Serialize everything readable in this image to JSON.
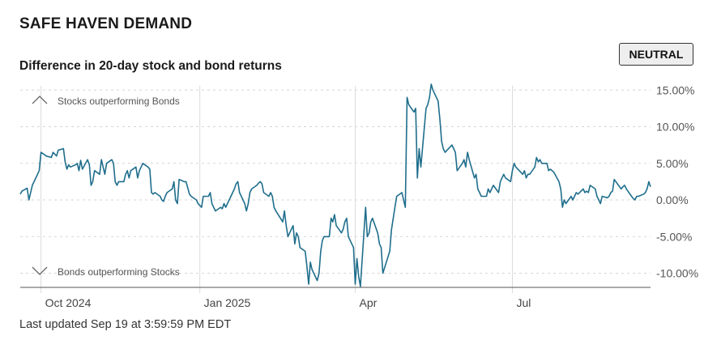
{
  "header": {
    "title": "SAFE HAVEN DEMAND",
    "subtitle": "Difference in 20-day stock and bond returns",
    "status_badge": "NEUTRAL"
  },
  "footer": {
    "last_updated": "Last updated Sep 19 at 3:59:59 PM EDT"
  },
  "chart_data": {
    "type": "line",
    "title": "Difference in 20-day stock and bond returns",
    "xlabel": "",
    "ylabel": "",
    "x_ticks": [
      "Oct 2024",
      "Jan 2025",
      "Apr",
      "Jul"
    ],
    "y_ticks": [
      "15.00%",
      "10.00%",
      "5.00%",
      "0.00%",
      "-5.00%",
      "-10.00%"
    ],
    "ylim": [
      -12,
      16
    ],
    "xlim": [
      "2024-09-19",
      "2025-09-19"
    ],
    "grid": true,
    "annotations": {
      "top": "Stocks outperforming Bonds",
      "bottom": "Bonds outperforming Stocks"
    },
    "line_color": "#1f6e8c",
    "series": [
      {
        "values": [
          [
            "2024-09-19",
            0.8
          ],
          [
            "2024-09-20",
            1.2
          ],
          [
            "2024-09-23",
            1.6
          ],
          [
            "2024-09-24",
            0.0
          ],
          [
            "2024-09-26",
            2.0
          ],
          [
            "2024-09-27",
            2.5
          ],
          [
            "2024-09-30",
            4.0
          ],
          [
            "2024-10-01",
            6.5
          ],
          [
            "2024-10-03",
            6.2
          ],
          [
            "2024-10-04",
            6.0
          ],
          [
            "2024-10-07",
            5.8
          ],
          [
            "2024-10-08",
            6.5
          ],
          [
            "2024-10-10",
            6.0
          ],
          [
            "2024-10-11",
            6.8
          ],
          [
            "2024-10-14",
            7.0
          ],
          [
            "2024-10-15",
            5.2
          ],
          [
            "2024-10-16",
            4.2
          ],
          [
            "2024-10-17",
            4.8
          ],
          [
            "2024-10-18",
            4.5
          ],
          [
            "2024-10-21",
            4.8
          ],
          [
            "2024-10-22",
            5.0
          ],
          [
            "2024-10-23",
            4.0
          ],
          [
            "2024-10-24",
            5.4
          ],
          [
            "2024-10-25",
            4.2
          ],
          [
            "2024-10-28",
            5.5
          ],
          [
            "2024-10-29",
            4.8
          ],
          [
            "2024-10-30",
            2.0
          ],
          [
            "2024-10-31",
            2.5
          ],
          [
            "2024-11-01",
            4.0
          ],
          [
            "2024-11-04",
            3.5
          ],
          [
            "2024-11-05",
            5.5
          ],
          [
            "2024-11-06",
            4.5
          ],
          [
            "2024-11-07",
            3.5
          ],
          [
            "2024-11-08",
            5.0
          ],
          [
            "2024-11-11",
            5.5
          ],
          [
            "2024-11-12",
            5.0
          ],
          [
            "2024-11-13",
            2.5
          ],
          [
            "2024-11-14",
            2.0
          ],
          [
            "2024-11-15",
            2.5
          ],
          [
            "2024-11-18",
            2.5
          ],
          [
            "2024-11-19",
            3.5
          ],
          [
            "2024-11-20",
            4.0
          ],
          [
            "2024-11-21",
            3.0
          ],
          [
            "2024-11-22",
            4.0
          ],
          [
            "2024-11-25",
            4.5
          ],
          [
            "2024-11-26",
            3.0
          ],
          [
            "2024-11-27",
            4.0
          ],
          [
            "2024-11-29",
            5.0
          ],
          [
            "2024-12-02",
            4.5
          ],
          [
            "2024-12-03",
            4.2
          ],
          [
            "2024-12-04",
            1.0
          ],
          [
            "2024-12-05",
            0.8
          ],
          [
            "2024-12-06",
            1.0
          ],
          [
            "2024-12-09",
            0.5
          ],
          [
            "2024-12-10",
            0.0
          ],
          [
            "2024-12-11",
            -0.2
          ],
          [
            "2024-12-12",
            0.5
          ],
          [
            "2024-12-13",
            1.0
          ],
          [
            "2024-12-16",
            1.5
          ],
          [
            "2024-12-17",
            2.5
          ],
          [
            "2024-12-18",
            0.0
          ],
          [
            "2024-12-19",
            -0.5
          ],
          [
            "2024-12-20",
            2.8
          ],
          [
            "2024-12-23",
            2.5
          ],
          [
            "2024-12-24",
            2.5
          ],
          [
            "2024-12-26",
            0.8
          ],
          [
            "2024-12-27",
            0.5
          ],
          [
            "2024-12-30",
            0.0
          ],
          [
            "2024-12-31",
            -0.5
          ],
          [
            "2025-01-02",
            -1.0
          ],
          [
            "2025-01-03",
            0.5
          ],
          [
            "2025-01-06",
            0.5
          ],
          [
            "2025-01-07",
            1.0
          ],
          [
            "2025-01-08",
            -0.5
          ],
          [
            "2025-01-10",
            -1.5
          ],
          [
            "2025-01-13",
            -1.0
          ],
          [
            "2025-01-14",
            -1.2
          ],
          [
            "2025-01-15",
            -0.5
          ],
          [
            "2025-01-16",
            -1.0
          ],
          [
            "2025-01-17",
            -0.5
          ],
          [
            "2025-01-21",
            1.5
          ],
          [
            "2025-01-22",
            2.2
          ],
          [
            "2025-01-23",
            2.5
          ],
          [
            "2025-01-24",
            1.0
          ],
          [
            "2025-01-27",
            -0.5
          ],
          [
            "2025-01-28",
            -1.5
          ],
          [
            "2025-01-29",
            -0.5
          ],
          [
            "2025-01-30",
            1.0
          ],
          [
            "2025-01-31",
            1.5
          ],
          [
            "2025-02-03",
            2.0
          ],
          [
            "2025-02-04",
            2.3
          ],
          [
            "2025-02-05",
            2.5
          ],
          [
            "2025-02-06",
            2.2
          ],
          [
            "2025-02-07",
            1.0
          ],
          [
            "2025-02-10",
            0.5
          ],
          [
            "2025-02-11",
            1.0
          ],
          [
            "2025-02-12",
            0.5
          ],
          [
            "2025-02-13",
            -1.0
          ],
          [
            "2025-02-14",
            -1.5
          ],
          [
            "2025-02-18",
            -3.0
          ],
          [
            "2025-02-19",
            -1.5
          ],
          [
            "2025-02-20",
            -3.5
          ],
          [
            "2025-02-21",
            -5.0
          ],
          [
            "2025-02-24",
            -3.5
          ],
          [
            "2025-02-25",
            -6.0
          ],
          [
            "2025-02-26",
            -4.5
          ],
          [
            "2025-02-27",
            -5.0
          ],
          [
            "2025-02-28",
            -6.5
          ],
          [
            "2025-03-03",
            -7.0
          ],
          [
            "2025-03-04",
            -9.0
          ],
          [
            "2025-03-05",
            -11.5
          ],
          [
            "2025-03-06",
            -8.5
          ],
          [
            "2025-03-07",
            -9.5
          ],
          [
            "2025-03-10",
            -11.0
          ],
          [
            "2025-03-11",
            -10.0
          ],
          [
            "2025-03-12",
            -7.0
          ],
          [
            "2025-03-13",
            -5.5
          ],
          [
            "2025-03-14",
            -5.0
          ],
          [
            "2025-03-17",
            -5.0
          ],
          [
            "2025-03-18",
            -2.5
          ],
          [
            "2025-03-19",
            -3.0
          ],
          [
            "2025-03-20",
            -2.0
          ],
          [
            "2025-03-21",
            -3.5
          ],
          [
            "2025-03-24",
            -4.5
          ],
          [
            "2025-03-25",
            -4.0
          ],
          [
            "2025-03-26",
            -3.0
          ],
          [
            "2025-03-27",
            -2.5
          ],
          [
            "2025-03-28",
            -5.0
          ],
          [
            "2025-03-31",
            -6.5
          ],
          [
            "2025-04-01",
            -11.5
          ],
          [
            "2025-04-02",
            -8.0
          ],
          [
            "2025-04-03",
            -10.5
          ],
          [
            "2025-04-04",
            -11.8
          ],
          [
            "2025-04-07",
            -1.0
          ],
          [
            "2025-04-08",
            -5.0
          ],
          [
            "2025-04-09",
            -4.5
          ],
          [
            "2025-04-10",
            -3.0
          ],
          [
            "2025-04-11",
            -2.5
          ],
          [
            "2025-04-14",
            -4.5
          ],
          [
            "2025-04-15",
            -6.0
          ],
          [
            "2025-04-16",
            -6.5
          ],
          [
            "2025-04-17",
            -10.0
          ],
          [
            "2025-04-21",
            -7.0
          ],
          [
            "2025-04-22",
            -4.0
          ],
          [
            "2025-04-23",
            -2.5
          ],
          [
            "2025-04-24",
            -1.0
          ],
          [
            "2025-04-25",
            0.5
          ],
          [
            "2025-04-28",
            1.0
          ],
          [
            "2025-04-29",
            0.0
          ],
          [
            "2025-04-30",
            -1.0
          ],
          [
            "2025-05-01",
            14.0
          ],
          [
            "2025-05-02",
            13.0
          ],
          [
            "2025-05-05",
            12.0
          ],
          [
            "2025-05-06",
            12.5
          ],
          [
            "2025-05-07",
            3.0
          ],
          [
            "2025-05-08",
            7.0
          ],
          [
            "2025-05-09",
            4.5
          ],
          [
            "2025-05-12",
            12.5
          ],
          [
            "2025-05-13",
            13.0
          ],
          [
            "2025-05-14",
            14.0
          ],
          [
            "2025-05-15",
            15.8
          ],
          [
            "2025-05-16",
            15.0
          ],
          [
            "2025-05-19",
            13.5
          ],
          [
            "2025-05-20",
            11.0
          ],
          [
            "2025-05-21",
            8.0
          ],
          [
            "2025-05-22",
            7.0
          ],
          [
            "2025-05-23",
            6.5
          ],
          [
            "2025-05-27",
            7.5
          ],
          [
            "2025-05-28",
            7.0
          ],
          [
            "2025-05-29",
            6.5
          ],
          [
            "2025-05-30",
            4.0
          ],
          [
            "2025-06-02",
            5.0
          ],
          [
            "2025-06-03",
            5.5
          ],
          [
            "2025-06-04",
            4.5
          ],
          [
            "2025-06-05",
            6.5
          ],
          [
            "2025-06-06",
            5.5
          ],
          [
            "2025-06-09",
            3.0
          ],
          [
            "2025-06-10",
            3.5
          ],
          [
            "2025-06-11",
            1.5
          ],
          [
            "2025-06-12",
            1.0
          ],
          [
            "2025-06-13",
            0.5
          ],
          [
            "2025-06-16",
            0.5
          ],
          [
            "2025-06-17",
            1.5
          ],
          [
            "2025-06-18",
            1.0
          ],
          [
            "2025-06-20",
            2.0
          ],
          [
            "2025-06-23",
            1.0
          ],
          [
            "2025-06-24",
            2.5
          ],
          [
            "2025-06-25",
            3.0
          ],
          [
            "2025-06-26",
            3.5
          ],
          [
            "2025-06-27",
            3.0
          ],
          [
            "2025-06-30",
            2.5
          ],
          [
            "2025-07-01",
            4.0
          ],
          [
            "2025-07-02",
            5.0
          ],
          [
            "2025-07-03",
            4.5
          ],
          [
            "2025-07-07",
            3.5
          ],
          [
            "2025-07-08",
            4.0
          ],
          [
            "2025-07-09",
            3.0
          ],
          [
            "2025-07-10",
            3.5
          ],
          [
            "2025-07-11",
            3.5
          ],
          [
            "2025-07-14",
            4.5
          ],
          [
            "2025-07-15",
            5.8
          ],
          [
            "2025-07-16",
            5.2
          ],
          [
            "2025-07-17",
            5.5
          ],
          [
            "2025-07-18",
            5.0
          ],
          [
            "2025-07-21",
            5.0
          ],
          [
            "2025-07-22",
            4.0
          ],
          [
            "2025-07-23",
            4.2
          ],
          [
            "2025-07-24",
            4.0
          ],
          [
            "2025-07-25",
            3.8
          ],
          [
            "2025-07-28",
            2.5
          ],
          [
            "2025-07-29",
            1.5
          ],
          [
            "2025-07-30",
            -1.0
          ],
          [
            "2025-07-31",
            0.0
          ],
          [
            "2025-08-01",
            -0.5
          ],
          [
            "2025-08-04",
            0.5
          ],
          [
            "2025-08-05",
            0.0
          ],
          [
            "2025-08-06",
            0.5
          ],
          [
            "2025-08-07",
            1.0
          ],
          [
            "2025-08-08",
            0.8
          ],
          [
            "2025-08-11",
            1.5
          ],
          [
            "2025-08-12",
            1.0
          ],
          [
            "2025-08-13",
            1.2
          ],
          [
            "2025-08-14",
            1.0
          ],
          [
            "2025-08-15",
            2.0
          ],
          [
            "2025-08-18",
            1.5
          ],
          [
            "2025-08-19",
            0.5
          ],
          [
            "2025-08-20",
            0.0
          ],
          [
            "2025-08-21",
            -0.5
          ],
          [
            "2025-08-22",
            0.5
          ],
          [
            "2025-08-25",
            0.3
          ],
          [
            "2025-08-26",
            0.5
          ],
          [
            "2025-08-27",
            1.0
          ],
          [
            "2025-08-28",
            1.2
          ],
          [
            "2025-08-29",
            2.8
          ],
          [
            "2025-09-02",
            1.5
          ],
          [
            "2025-09-03",
            1.8
          ],
          [
            "2025-09-04",
            2.0
          ],
          [
            "2025-09-05",
            1.5
          ],
          [
            "2025-09-08",
            0.5
          ],
          [
            "2025-09-09",
            0.2
          ],
          [
            "2025-09-10",
            0.0
          ],
          [
            "2025-09-11",
            0.5
          ],
          [
            "2025-09-12",
            0.5
          ],
          [
            "2025-09-15",
            0.8
          ],
          [
            "2025-09-16",
            1.0
          ],
          [
            "2025-09-17",
            1.5
          ],
          [
            "2025-09-18",
            2.5
          ],
          [
            "2025-09-19",
            1.8
          ]
        ]
      }
    ]
  }
}
